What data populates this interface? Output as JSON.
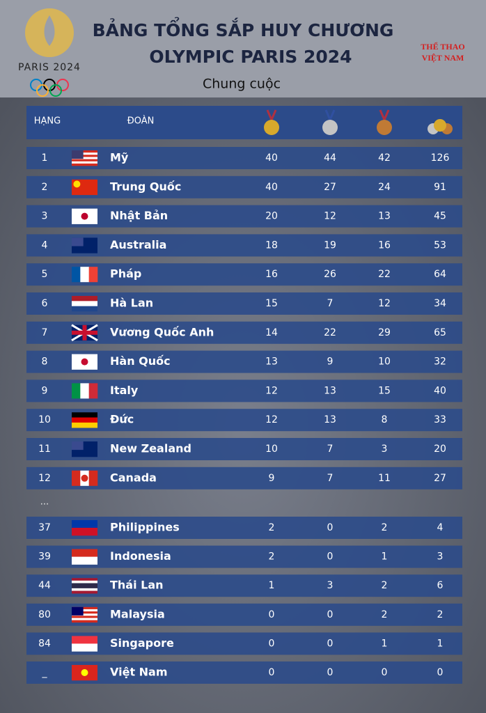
{
  "header": {
    "title": [
      "BẢNG TỔNG SẮP HUY CHƯƠNG",
      "OLYMPIC PARIS 2024"
    ],
    "subtitle": "Chung cuộc",
    "logo_left": "PARIS 2024",
    "logo_right": [
      "THỂ THAO",
      "VIỆT NAM"
    ]
  },
  "table": {
    "header": [
      "HẠNG",
      "ĐOÀN"
    ],
    "rows": [
      [
        1,
        "Mỹ",
        40,
        44,
        42,
        126
      ],
      [
        2,
        "Trung Quốc",
        40,
        27,
        24,
        91
      ],
      [
        3,
        "Nhật Bản",
        20,
        12,
        13,
        45
      ],
      [
        4,
        "Australia",
        18,
        19,
        16,
        53
      ],
      [
        5,
        "Pháp",
        16,
        26,
        22,
        64
      ],
      [
        6,
        "Hà Lan",
        15,
        7,
        12,
        34
      ],
      [
        7,
        "Vương Quốc Anh",
        14,
        22,
        29,
        65
      ],
      [
        8,
        "Hàn Quốc",
        13,
        9,
        10,
        32
      ],
      [
        9,
        "Italy",
        12,
        13,
        15,
        40
      ],
      [
        10,
        "Đức",
        12,
        13,
        8,
        33
      ],
      [
        11,
        "New Zealand",
        10,
        7,
        3,
        20
      ],
      [
        12,
        "Canada",
        9,
        7,
        11,
        27
      ],
      [
        37,
        "Philippines",
        2,
        0,
        2,
        4
      ],
      [
        39,
        "Indonesia",
        2,
        0,
        1,
        3
      ],
      [
        44,
        "Thái Lan",
        1,
        3,
        2,
        6
      ],
      [
        80,
        "Malaysia",
        0,
        0,
        2,
        2
      ],
      [
        84,
        "Singapore",
        0,
        0,
        1,
        1
      ],
      [
        "_",
        "Việt Nam",
        0,
        0,
        0,
        0
      ]
    ],
    "ellipsis": "..."
  }
}
